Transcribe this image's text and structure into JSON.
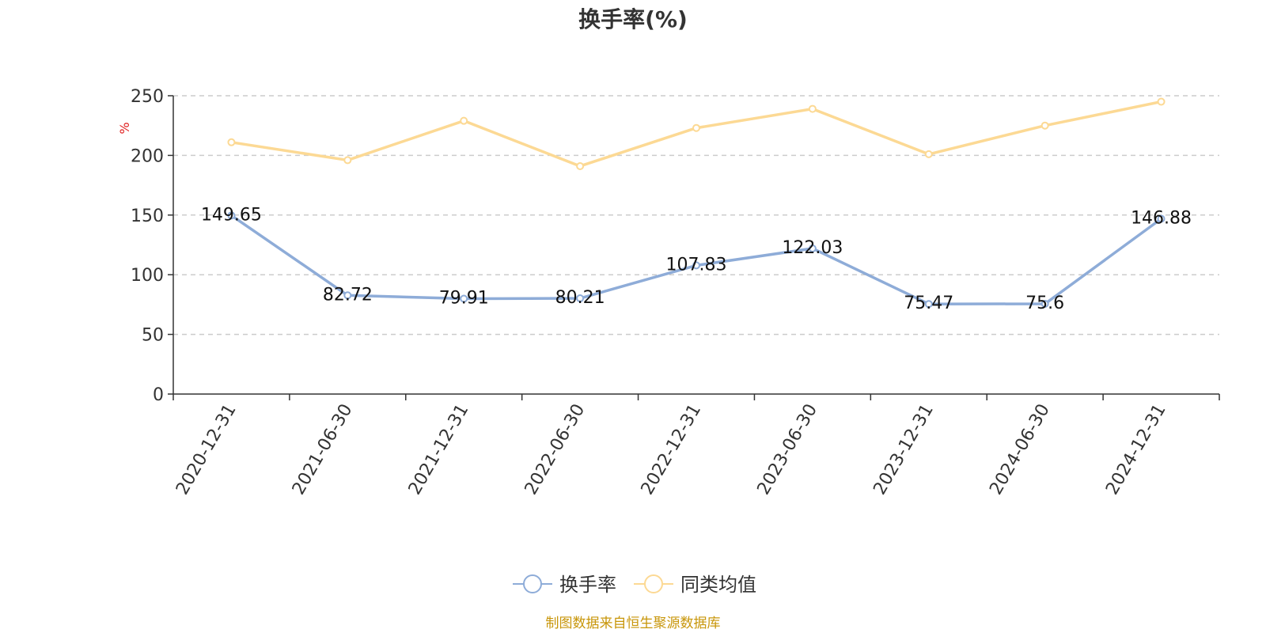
{
  "chart_data": {
    "type": "line",
    "title": "换手率(%)",
    "ylabel": "%",
    "xlabel": "",
    "ylim": [
      0,
      250
    ],
    "yticks": [
      0,
      50,
      100,
      150,
      200,
      250
    ],
    "categories": [
      "2020-12-31",
      "2021-06-30",
      "2021-12-31",
      "2022-06-30",
      "2022-12-31",
      "2023-06-30",
      "2023-12-31",
      "2024-06-30",
      "2024-12-31"
    ],
    "grid": "dashed horizontal",
    "legend_position": "bottom-center",
    "series": [
      {
        "name": "换手率",
        "color": "#8eacd8",
        "values": [
          149.65,
          82.72,
          79.91,
          80.21,
          107.83,
          122.03,
          75.47,
          75.6,
          146.88
        ],
        "labels": [
          "149.65",
          "82.72",
          "79.91",
          "80.21",
          "107.83",
          "122.03",
          "75.47",
          "75.6",
          "146.88"
        ]
      },
      {
        "name": "同类均值",
        "color": "#fcd994",
        "values": [
          211,
          196,
          229,
          191,
          223,
          239,
          201,
          225,
          245
        ]
      }
    ]
  },
  "footer": {
    "source": "制图数据来自恒生聚源数据库"
  }
}
